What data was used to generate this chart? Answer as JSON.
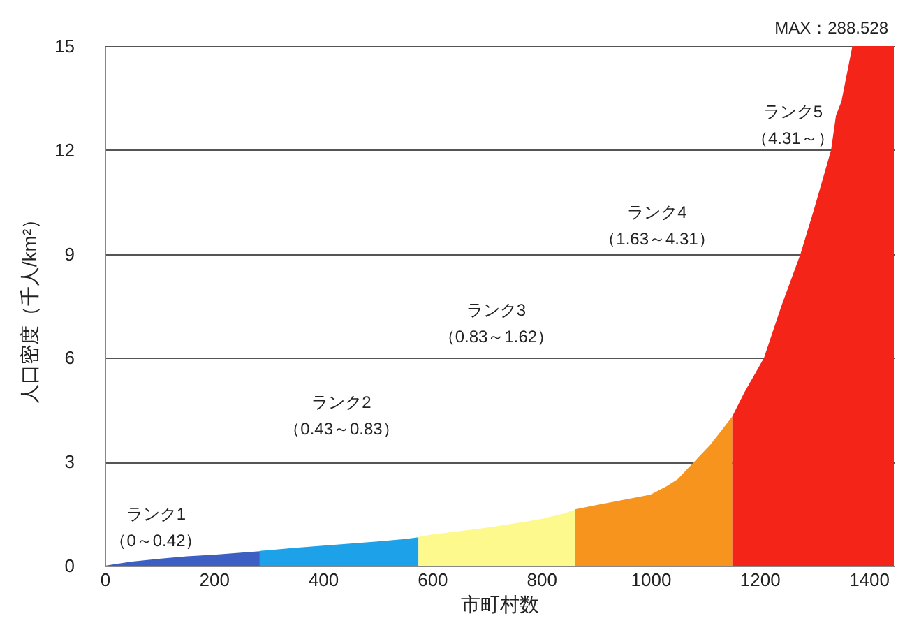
{
  "chart_data": {
    "type": "area",
    "xlabel": "市町村数",
    "ylabel": "人口密度（千人/km²）",
    "xlim": [
      0,
      1446
    ],
    "xticks": [
      0,
      200,
      400,
      600,
      800,
      {
        "value": 1000,
        "label": "1000"
      },
      {
        "value": 1200,
        "label": "1200"
      },
      {
        "value": 1400,
        "label": "1400"
      }
    ],
    "ylim": [
      0,
      15
    ],
    "yticks": [
      0,
      3,
      6,
      9,
      12,
      15
    ],
    "grid": "y",
    "series": [
      {
        "color": "#3d5fc4",
        "x": [
          0,
          20,
          50,
          100,
          150,
          200,
          250,
          284
        ],
        "values": [
          0,
          0.05,
          0.12,
          0.2,
          0.27,
          0.32,
          0.38,
          0.42
        ]
      },
      {
        "color": "#1da1e8",
        "x": [
          284,
          300,
          350,
          400,
          450,
          500,
          550,
          575
        ],
        "values": [
          0.43,
          0.45,
          0.52,
          0.58,
          0.64,
          0.7,
          0.77,
          0.82
        ]
      },
      {
        "color": "#fdf98c",
        "x": [
          575,
          600,
          650,
          700,
          750,
          800,
          840,
          862
        ],
        "values": [
          0.83,
          0.9,
          1.0,
          1.1,
          1.22,
          1.35,
          1.5,
          1.62
        ]
      },
      {
        "color": "#f7941d",
        "x": [
          862,
          900,
          950,
          1000,
          1030,
          1050,
          1080,
          1110,
          1130,
          1150
        ],
        "values": [
          1.63,
          1.75,
          1.9,
          2.05,
          2.3,
          2.5,
          3.0,
          3.5,
          3.9,
          4.31
        ]
      },
      {
        "color": "#f42419",
        "x": [
          1150,
          1172,
          1208,
          1240,
          1275,
          1300,
          1331,
          1340,
          1350,
          1370,
          1446
        ],
        "values": [
          4.31,
          5,
          6,
          7.5,
          9,
          10.3,
          12,
          13,
          13.4,
          15,
          15
        ]
      }
    ],
    "annotations": [
      "ランク1\n（0～0.42）",
      "ランク2\n（0.43～0.83）",
      "ランク3\n（0.83～1.62）",
      "ランク4\n（1.63～4.31）",
      "ランク5\n（4.31～）",
      "MAX：288.528"
    ]
  }
}
